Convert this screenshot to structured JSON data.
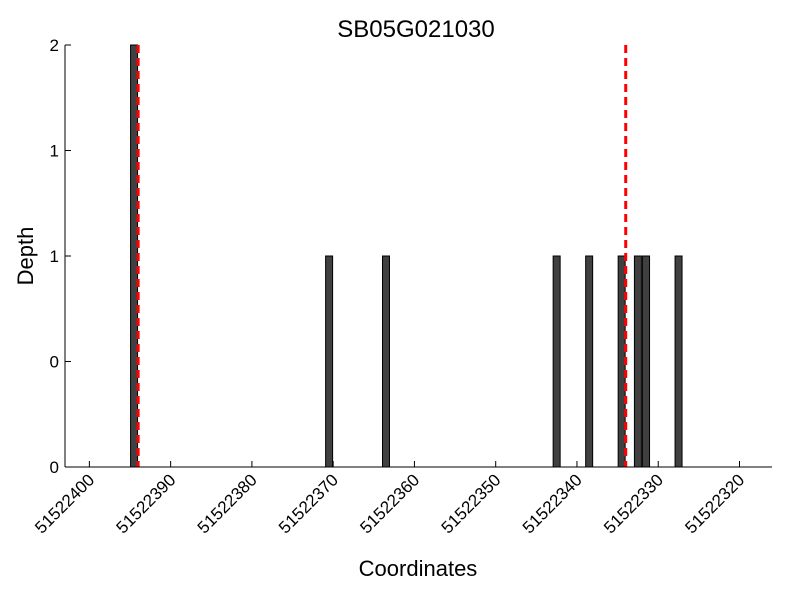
{
  "chart_data": {
    "type": "bar",
    "title": "SB05G021030",
    "xlabel": "Coordinates",
    "ylabel": "Depth",
    "x_axis_reversed": true,
    "xlim": [
      51522403,
      51522316
    ],
    "ylim": [
      0,
      2
    ],
    "y_ticks": [
      0,
      0.5,
      1,
      1.5,
      2
    ],
    "y_tick_labels": [
      "0",
      "0",
      "1",
      "1",
      "2"
    ],
    "x_ticks": [
      51522400,
      51522390,
      51522380,
      51522370,
      51522360,
      51522350,
      51522340,
      51522330,
      51522320
    ],
    "x_tick_labels": [
      "51522400",
      "51522390",
      "51522380",
      "51522370",
      "51522360",
      "51522350",
      "51522340",
      "51522330",
      "51522320"
    ],
    "bars": [
      {
        "x": 51522394.5,
        "value": 2
      },
      {
        "x": 51522370.5,
        "value": 1
      },
      {
        "x": 51522363.5,
        "value": 1
      },
      {
        "x": 51522342.5,
        "value": 1
      },
      {
        "x": 51522338.5,
        "value": 1
      },
      {
        "x": 51522334.5,
        "value": 1
      },
      {
        "x": 51522332.5,
        "value": 1
      },
      {
        "x": 51522331.5,
        "value": 1
      },
      {
        "x": 51522327.5,
        "value": 1
      }
    ],
    "reference_lines": [
      {
        "x": 51522394,
        "color": "#ff0000",
        "style": "dashed"
      },
      {
        "x": 51522334,
        "color": "#ff0000",
        "style": "dashed"
      }
    ],
    "bar_color": "#404040",
    "bar_edge_color": "#000000",
    "grid": false
  }
}
